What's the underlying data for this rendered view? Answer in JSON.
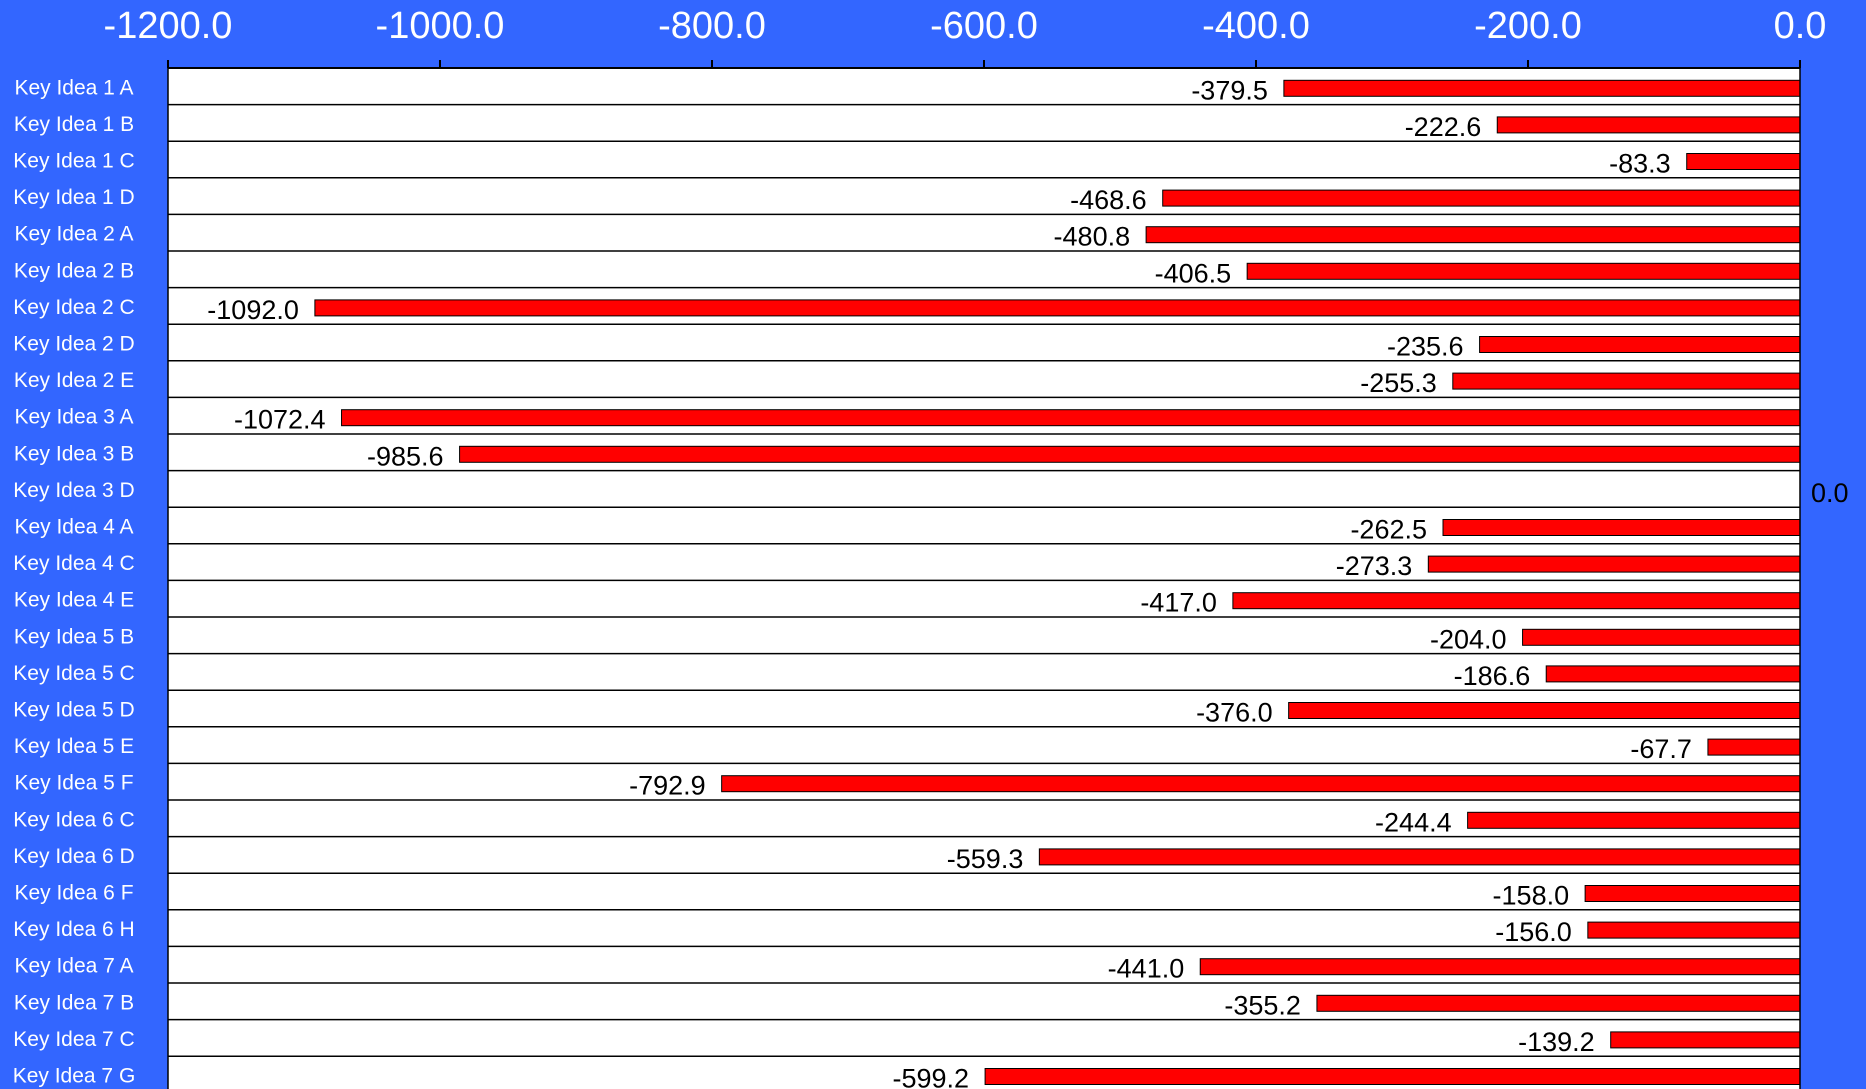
{
  "chart_data": {
    "type": "bar",
    "orientation": "horizontal",
    "title": "",
    "xlabel": "",
    "ylabel": "",
    "xlim": [
      -1200,
      0
    ],
    "x_ticks": [
      -1200,
      -1000,
      -800,
      -600,
      -400,
      -200,
      0
    ],
    "x_tick_labels": [
      "-1200.0",
      "-1000.0",
      "-800.0",
      "-600.0",
      "-400.0",
      "-200.0",
      "0.0"
    ],
    "axis_position": "top",
    "grid": false,
    "categories": [
      "Key Idea 1 A",
      "Key Idea 1 B",
      "Key Idea 1 C",
      "Key Idea 1 D",
      "Key Idea 2 A",
      "Key Idea 2 B",
      "Key Idea 2 C",
      "Key Idea 2 D",
      "Key Idea 2 E",
      "Key Idea 3 A",
      "Key Idea 3 B",
      "Key Idea 3 D",
      "Key Idea 4 A",
      "Key Idea 4 C",
      "Key Idea 4 E",
      "Key Idea 5 B",
      "Key Idea 5 C",
      "Key Idea 5 D",
      "Key Idea 5 E",
      "Key Idea 5 F",
      "Key Idea 6 C",
      "Key Idea 6 D",
      "Key Idea 6 F",
      "Key Idea 6 H",
      "Key Idea 7 A",
      "Key Idea 7 B",
      "Key Idea 7 C",
      "Key Idea 7 G"
    ],
    "values": [
      -379.5,
      -222.6,
      -83.3,
      -468.6,
      -480.8,
      -406.5,
      -1092.0,
      -235.6,
      -255.3,
      -1072.4,
      -985.6,
      0.0,
      -262.5,
      -273.3,
      -417.0,
      -204.0,
      -186.6,
      -376.0,
      -67.7,
      -792.9,
      -244.4,
      -559.3,
      -158.0,
      -156.0,
      -441.0,
      -355.2,
      -139.2,
      -599.2
    ],
    "value_labels": [
      "-379.5",
      "-222.6",
      "-83.3",
      "-468.6",
      "-480.8",
      "-406.5",
      "-1092.0",
      "-235.6",
      "-255.3",
      "-1072.4",
      "-985.6",
      "0.0",
      "-262.5",
      "-273.3",
      "-417.0",
      "-204.0",
      "-186.6",
      "-376.0",
      "-67.7",
      "-792.9",
      "-244.4",
      "-559.3",
      "-158.0",
      "-156.0",
      "-441.0",
      "-355.2",
      "-139.2",
      "-599.2"
    ],
    "colors": {
      "background": "#3366ff",
      "plot_area": "#ffffff",
      "bar": "#ff0000",
      "bar_border": "#000000",
      "axis_text": "#ffffff",
      "value_text": "#000000"
    }
  }
}
